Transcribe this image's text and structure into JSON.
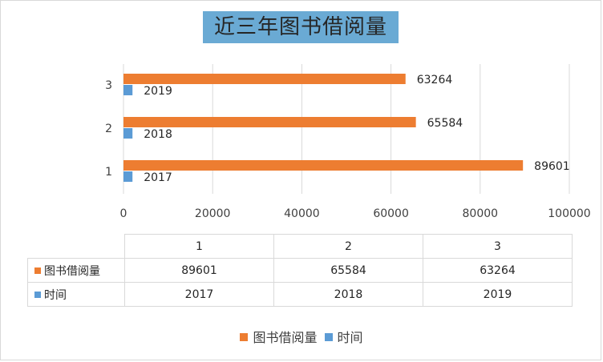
{
  "chart_data": {
    "type": "bar",
    "orientation": "horizontal",
    "title": "近三年图书借阅量",
    "categories": [
      "1",
      "2",
      "3"
    ],
    "series": [
      {
        "name": "图书借阅量",
        "values": [
          89601,
          65584,
          63264
        ],
        "color": "#ed7d31"
      },
      {
        "name": "时间",
        "values": [
          2017,
          2018,
          2019
        ],
        "color": "#5b9bd5"
      }
    ],
    "xlim": [
      0,
      100000
    ],
    "xticks": [
      "0",
      "20000",
      "40000",
      "60000",
      "80000",
      "100000"
    ],
    "grid": true,
    "legend_position": "bottom",
    "data_table": true
  }
}
